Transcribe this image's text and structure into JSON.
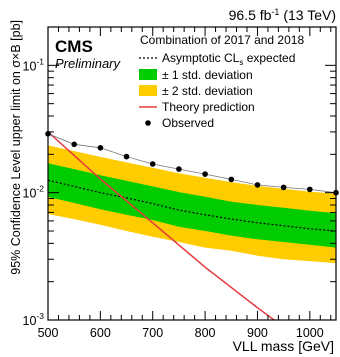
{
  "chart_data": {
    "type": "line",
    "lumi_label": "96.5 fb",
    "lumi_exponent": "-1",
    "energy_label": " (13 TeV)",
    "cms_label": "CMS",
    "preliminary_label": "Preliminary",
    "combination_text": "Combination of 2017 and 2018",
    "xlabel": "VLL mass [GeV]",
    "ylabel": "95% Confidence Level upper limit on σ×B [pb]",
    "x_ticks": [
      "500",
      "600",
      "700",
      "800",
      "900",
      "1000"
    ],
    "y_tick_base": "10",
    "y_tick_exponents": [
      "-3",
      "-2",
      "-1"
    ],
    "xlim": [
      500,
      1050
    ],
    "ylim": [
      0.001,
      0.2
    ],
    "y_scale": "log",
    "legend": {
      "expected_prefix": "Asymptotic CL",
      "expected_sub": "s",
      "expected_suffix": " expected",
      "one_sigma": "± 1 std. deviation",
      "two_sigma": "± 2 std. deviation",
      "theory": "Theory prediction",
      "observed": "Observed"
    },
    "colors": {
      "two_sigma": "#ffcc00",
      "one_sigma": "#00cc00",
      "theory": "#e8383f",
      "observed": "#000000",
      "expected": "#000000"
    },
    "mass_points": [
      500,
      550,
      600,
      650,
      700,
      750,
      800,
      850,
      900,
      950,
      1000,
      1050
    ],
    "expected": [
      0.0125,
      0.0112,
      0.01,
      0.0091,
      0.0082,
      0.0073,
      0.0067,
      0.0062,
      0.0058,
      0.0055,
      0.0052,
      0.005
    ],
    "one_sigma_low": [
      0.0093,
      0.0083,
      0.0074,
      0.0067,
      0.0061,
      0.0054,
      0.005,
      0.0046,
      0.0043,
      0.0041,
      0.0039,
      0.0037
    ],
    "one_sigma_high": [
      0.017,
      0.0153,
      0.0137,
      0.0124,
      0.0112,
      0.0101,
      0.0093,
      0.0085,
      0.008,
      0.0076,
      0.0072,
      0.0069
    ],
    "two_sigma_low": [
      0.0068,
      0.0062,
      0.0056,
      0.005,
      0.0045,
      0.0041,
      0.0037,
      0.0035,
      0.0032,
      0.003,
      0.0029,
      0.0028
    ],
    "two_sigma_high": [
      0.0235,
      0.0212,
      0.0191,
      0.0173,
      0.0157,
      0.0142,
      0.0131,
      0.0121,
      0.0113,
      0.0107,
      0.0102,
      0.0098
    ],
    "observed": [
      0.029,
      0.024,
      0.0225,
      0.0192,
      0.0168,
      0.0153,
      0.014,
      0.0127,
      0.0115,
      0.011,
      0.0106,
      0.01
    ],
    "theory_x": [
      500,
      600,
      700,
      800,
      900,
      950
    ],
    "theory_y": [
      0.03,
      0.0128,
      0.0058,
      0.0026,
      0.00125,
      0.00088
    ]
  }
}
